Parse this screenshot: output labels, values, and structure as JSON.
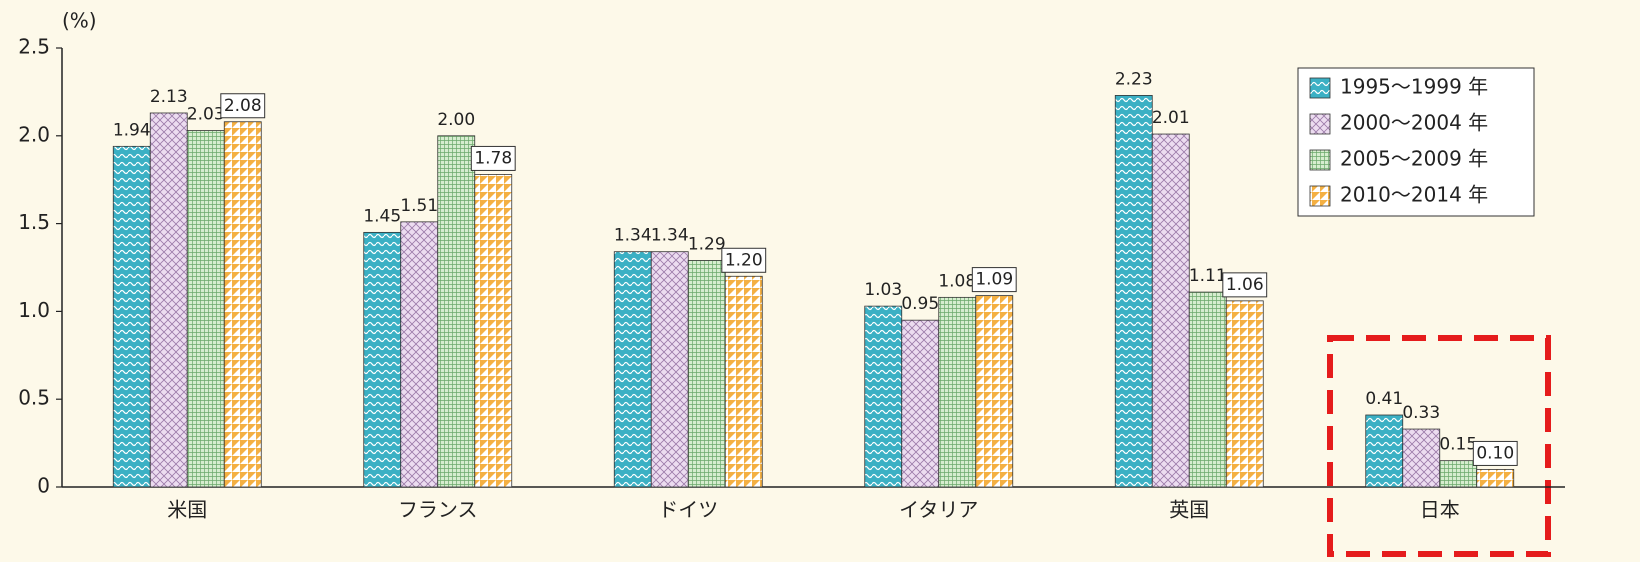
{
  "chart_data": {
    "type": "bar",
    "unit_label": "(%)",
    "categories": [
      "米国",
      "フランス",
      "ドイツ",
      "イタリア",
      "英国",
      "日本"
    ],
    "series": [
      {
        "name": "1995〜1999 年",
        "color": "#3bb0c4",
        "values": [
          1.94,
          1.45,
          1.34,
          1.03,
          2.23,
          0.41
        ],
        "value_labels": [
          "1.94",
          "1.45",
          "1.34",
          "1.03",
          "2.23",
          "0.41"
        ]
      },
      {
        "name": "2000〜2004 年",
        "color": "#ecdcf0",
        "values": [
          2.13,
          1.51,
          1.34,
          0.95,
          2.01,
          0.33
        ],
        "value_labels": [
          "2.13",
          "1.51",
          "1.34",
          "0.95",
          "2.01",
          "0.33"
        ]
      },
      {
        "name": "2005〜2009 年",
        "color": "#d6edcf",
        "values": [
          2.03,
          2.0,
          1.29,
          1.08,
          1.11,
          0.15
        ],
        "value_labels": [
          "2.03",
          "2.00",
          "1.29",
          "1.08",
          "1.11",
          "0.15"
        ]
      },
      {
        "name": "2010〜2014 年",
        "color": "#f4b043",
        "values": [
          2.08,
          1.78,
          1.2,
          1.09,
          1.06,
          0.1
        ],
        "value_labels": [
          "2.08",
          "1.78",
          "1.20",
          "1.09",
          "1.06",
          "0.10"
        ]
      }
    ],
    "ylim": [
      0,
      2.5
    ],
    "yticks": [
      0,
      0.5,
      {
        "value": 1,
        "label": "1.0"
      },
      1.5,
      {
        "value": 2,
        "label": "2.0"
      },
      2.5
    ],
    "legend": "top-right"
  }
}
